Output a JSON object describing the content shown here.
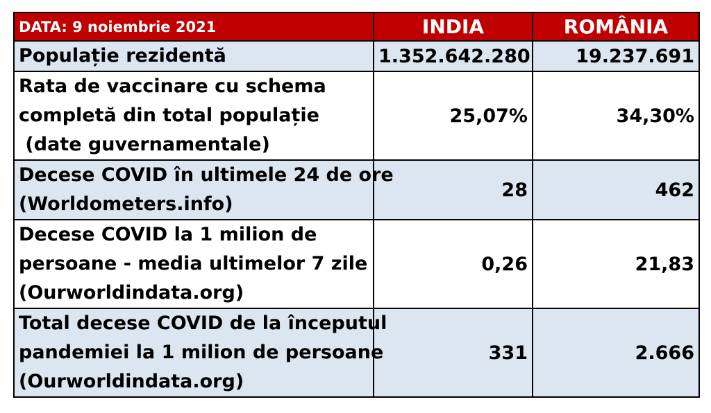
{
  "header": {
    "date_label": "DATA: 9 noiembrie 2021",
    "col_india": "INDIA",
    "col_romania": "ROMÂNIA"
  },
  "rows": [
    {
      "label_lines": [
        "Populație rezidentă"
      ],
      "india": "1.352.642.280",
      "romania": "19.237.691"
    },
    {
      "label_lines": [
        "Rata de vaccinare cu schema",
        "completă din total populație",
        " (date guvernamentale)"
      ],
      "india": "25,07%",
      "romania": "34,30%"
    },
    {
      "label_lines": [
        "Decese COVID în ultimele 24 de ore",
        "(Worldometers.info)"
      ],
      "india": "28",
      "romania": "462"
    },
    {
      "label_lines": [
        "Decese COVID la 1 milion de",
        "persoane - media ultimelor 7 zile",
        "(Ourworldindata.org)"
      ],
      "india": "0,26",
      "romania": "21,83"
    },
    {
      "label_lines": [
        "Total decese COVID de la începutul",
        "pandemiei la 1 milion de persoane",
        "(Ourworldindata.org)"
      ],
      "india": "331",
      "romania": "2.666"
    }
  ],
  "colors": {
    "header_bg": "#c00000",
    "header_text": "#ffffff",
    "band_blue": "#dce6f1",
    "band_white": "#ffffff"
  }
}
